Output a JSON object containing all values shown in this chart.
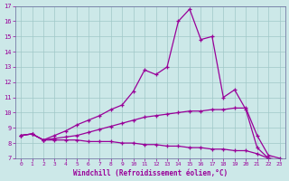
{
  "xlabel": "Windchill (Refroidissement éolien,°C)",
  "background_color": "#cce8e8",
  "line_color": "#990099",
  "xlim": [
    -0.5,
    23.5
  ],
  "ylim": [
    7,
    17
  ],
  "xticks": [
    0,
    1,
    2,
    3,
    4,
    5,
    6,
    7,
    8,
    9,
    10,
    11,
    12,
    13,
    14,
    15,
    16,
    17,
    18,
    19,
    20,
    21,
    22,
    23
  ],
  "yticks": [
    7,
    8,
    9,
    10,
    11,
    12,
    13,
    14,
    15,
    16,
    17
  ],
  "lines": [
    {
      "x": [
        0,
        1,
        2,
        3,
        4,
        5,
        6,
        7,
        8,
        9,
        10,
        11,
        12,
        13,
        14,
        15,
        16,
        17,
        18,
        19,
        20,
        21,
        22,
        23
      ],
      "y": [
        8.5,
        8.6,
        8.2,
        8.5,
        8.8,
        9.2,
        9.5,
        9.8,
        10.2,
        10.5,
        11.4,
        12.8,
        12.5,
        13.0,
        16.0,
        16.8,
        14.8,
        15.0,
        11.0,
        11.5,
        10.2,
        7.7,
        7.0,
        6.9
      ]
    },
    {
      "x": [
        0,
        1,
        2,
        3,
        4,
        5,
        6,
        7,
        8,
        9,
        10,
        11,
        12,
        13,
        14,
        15,
        16,
        17,
        18,
        19,
        20,
        21,
        22,
        23
      ],
      "y": [
        8.5,
        8.6,
        8.2,
        8.3,
        8.4,
        8.5,
        8.7,
        8.9,
        9.1,
        9.3,
        9.5,
        9.7,
        9.8,
        9.9,
        10.0,
        10.1,
        10.1,
        10.2,
        10.2,
        10.3,
        10.3,
        8.5,
        7.2,
        7.0
      ]
    },
    {
      "x": [
        0,
        1,
        2,
        3,
        4,
        5,
        6,
        7,
        8,
        9,
        10,
        11,
        12,
        13,
        14,
        15,
        16,
        17,
        18,
        19,
        20,
        21,
        22,
        23
      ],
      "y": [
        8.5,
        8.6,
        8.2,
        8.2,
        8.2,
        8.2,
        8.1,
        8.1,
        8.1,
        8.0,
        8.0,
        7.9,
        7.9,
        7.8,
        7.8,
        7.7,
        7.7,
        7.6,
        7.6,
        7.5,
        7.5,
        7.3,
        7.0,
        6.9
      ]
    }
  ]
}
